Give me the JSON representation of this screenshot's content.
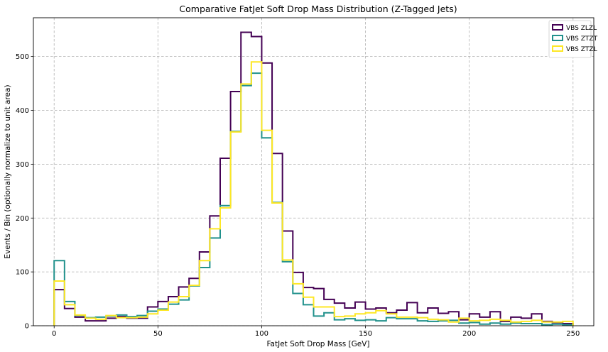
{
  "chart_data": {
    "type": "step-histogram",
    "title": "Comparative FatJet Soft Drop Mass Distribution (Z-Tagged Jets)",
    "xlabel": "FatJet Soft Drop Mass [GeV]",
    "ylabel": "Events / Bin (optionally normalize to unit area)",
    "xlim": [
      -10,
      260
    ],
    "ylim": [
      0,
      572
    ],
    "xticks": [
      0,
      50,
      100,
      150,
      200,
      250
    ],
    "yticks": [
      0,
      100,
      200,
      300,
      400,
      500
    ],
    "grid": true,
    "legend_position": "top-right",
    "bin_edges_start": 0,
    "bin_width": 5,
    "series": [
      {
        "name": "VBS ZLZL",
        "color": "#440154",
        "values": [
          67,
          32,
          16,
          9,
          9,
          14,
          17,
          14,
          14,
          35,
          45,
          54,
          72,
          88,
          137,
          204,
          311,
          435,
          545,
          537,
          488,
          320,
          176,
          99,
          71,
          69,
          49,
          42,
          33,
          44,
          31,
          33,
          24,
          29,
          43,
          24,
          33,
          23,
          26,
          11,
          22,
          16,
          26,
          8,
          16,
          14,
          22,
          8,
          6,
          4
        ]
      },
      {
        "name": "VBS ZTZT",
        "color": "#21918c",
        "values": [
          121,
          45,
          19,
          15,
          16,
          18,
          20,
          17,
          19,
          27,
          31,
          40,
          48,
          74,
          108,
          163,
          223,
          361,
          446,
          469,
          349,
          229,
          119,
          60,
          39,
          18,
          24,
          11,
          13,
          10,
          11,
          9,
          15,
          13,
          13,
          9,
          8,
          9,
          10,
          5,
          6,
          3,
          5,
          3,
          5,
          4,
          4,
          2,
          3,
          2
        ]
      },
      {
        "name": "VBS ZTZL",
        "color": "#fde725",
        "values": [
          83,
          39,
          20,
          14,
          12,
          19,
          15,
          15,
          16,
          22,
          29,
          44,
          54,
          75,
          121,
          180,
          219,
          360,
          449,
          490,
          363,
          228,
          122,
          78,
          53,
          35,
          35,
          17,
          18,
          22,
          24,
          28,
          22,
          16,
          16,
          15,
          12,
          11,
          7,
          14,
          9,
          10,
          12,
          10,
          7,
          8,
          10,
          7,
          7,
          8
        ]
      }
    ]
  }
}
